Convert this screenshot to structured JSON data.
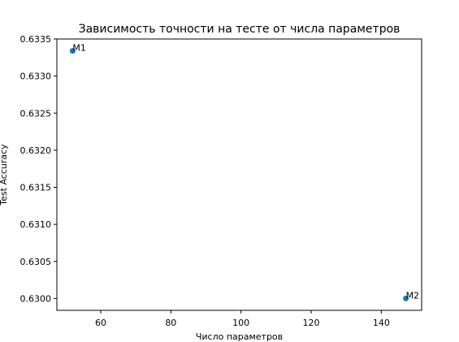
{
  "chart_data": {
    "type": "scatter",
    "title": "Зависимость точности на тесте от числа параметров",
    "xlabel": "Число параметров",
    "ylabel": "Test Accuracy",
    "xlim": [
      47.5,
      151.5
    ],
    "ylim": [
      0.62984,
      0.6335
    ],
    "xticks": [
      60,
      80,
      100,
      120,
      140
    ],
    "xtick_labels": [
      "60",
      "80",
      "100",
      "120",
      "140"
    ],
    "yticks": [
      0.63,
      0.6305,
      0.631,
      0.6315,
      0.632,
      0.6325,
      0.633,
      0.6335
    ],
    "ytick_labels": [
      "0.6300",
      "0.6305",
      "0.6310",
      "0.6315",
      "0.6320",
      "0.6325",
      "0.6330",
      "0.6335"
    ],
    "grid": false,
    "points": [
      {
        "x": 52,
        "y": 0.63334,
        "label": "M1"
      },
      {
        "x": 147,
        "y": 0.63,
        "label": "M2"
      }
    ],
    "colors": {
      "marker": "#1f77b4",
      "axes": "#000000",
      "background": "#ffffff"
    }
  }
}
